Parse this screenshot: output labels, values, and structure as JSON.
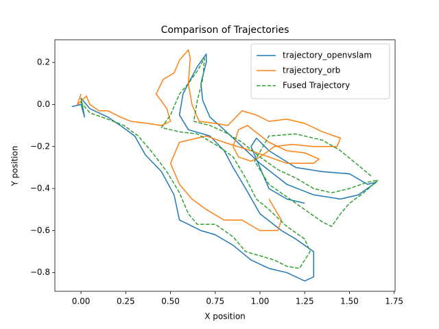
{
  "chart_data": {
    "type": "line",
    "title": "Comparison of Trajectories",
    "xlabel": "X position",
    "ylabel": "Y position",
    "xlim": [
      -0.146,
      1.755
    ],
    "ylim": [
      -0.889,
      0.308
    ],
    "xticks": [
      {
        "value": 0,
        "label": "0.00"
      },
      {
        "value": 0.25,
        "label": "0.25"
      },
      {
        "value": 0.5,
        "label": "0.50"
      },
      {
        "value": 0.75,
        "label": "0.75"
      },
      {
        "value": 1,
        "label": "1.00"
      },
      {
        "value": 1.25,
        "label": "1.25"
      },
      {
        "value": 1.5,
        "label": "1.50"
      },
      {
        "value": 1.75,
        "label": "1.75"
      }
    ],
    "yticks": [
      {
        "value": -0.8,
        "label": "−0.8"
      },
      {
        "value": -0.6,
        "label": "−0.6"
      },
      {
        "value": -0.4,
        "label": "−0.4"
      },
      {
        "value": -0.2,
        "label": "−0.2"
      },
      {
        "value": 0,
        "label": "0.0"
      },
      {
        "value": 0.2,
        "label": "0.2"
      }
    ],
    "legend": "upper right",
    "series": [
      {
        "name": "trajectory_openvslam",
        "color": "#1f77b4",
        "linestyle": "solid",
        "x": [
          -0.05,
          0.0,
          0.02,
          0.0,
          0.05,
          0.15,
          0.22,
          0.3,
          0.36,
          0.45,
          0.52,
          0.55,
          0.6,
          0.67,
          0.75,
          0.85,
          0.95,
          1.05,
          1.15,
          1.25,
          1.3,
          1.3,
          1.2,
          1.12,
          1.0,
          0.92,
          0.85,
          0.8,
          0.72,
          0.6,
          0.55,
          0.57,
          0.6,
          0.65,
          0.7,
          0.7,
          0.67,
          0.68,
          0.72,
          0.8,
          0.9,
          1.0,
          1.15,
          1.3,
          1.45,
          1.55,
          1.65,
          1.6,
          1.5,
          1.35,
          1.2,
          1.05,
          0.98,
          0.95,
          1.0,
          1.05,
          1.15,
          1.25
        ],
        "values": [
          -0.01,
          0.0,
          -0.06,
          0.03,
          -0.02,
          -0.06,
          -0.1,
          -0.15,
          -0.24,
          -0.32,
          -0.43,
          -0.55,
          -0.57,
          -0.6,
          -0.62,
          -0.67,
          -0.74,
          -0.78,
          -0.8,
          -0.84,
          -0.82,
          -0.7,
          -0.64,
          -0.6,
          -0.52,
          -0.4,
          -0.3,
          -0.22,
          -0.15,
          -0.12,
          -0.05,
          0.05,
          0.1,
          0.18,
          0.24,
          0.2,
          0.1,
          0.02,
          -0.06,
          -0.12,
          -0.2,
          -0.28,
          -0.38,
          -0.43,
          -0.45,
          -0.43,
          -0.37,
          -0.38,
          -0.33,
          -0.32,
          -0.3,
          -0.22,
          -0.16,
          -0.2,
          -0.3,
          -0.4,
          -0.45,
          -0.47
        ]
      },
      {
        "name": "trajectory_orb",
        "color": "#ff7f0e",
        "linestyle": "solid",
        "x": [
          0.0,
          -0.02,
          0.03,
          0.05,
          0.1,
          0.15,
          0.22,
          0.28,
          0.37,
          0.45,
          0.5,
          0.48,
          0.42,
          0.46,
          0.52,
          0.55,
          0.6,
          0.61,
          0.6,
          0.62,
          0.66,
          0.75,
          0.82,
          0.9,
          0.98,
          1.05,
          1.15,
          1.25,
          1.35,
          1.45,
          1.43,
          1.3,
          1.18,
          1.08,
          1.0,
          0.95,
          0.88,
          0.85,
          0.88,
          0.93,
          1.05,
          1.15,
          1.25,
          1.33,
          1.3,
          1.15,
          1.05,
          0.95,
          0.8,
          0.7,
          0.55,
          0.5,
          0.55,
          0.62,
          0.7,
          0.8,
          0.9,
          1.0,
          1.1,
          1.12,
          1.05
        ],
        "values": [
          0.05,
          0.0,
          0.04,
          0.0,
          -0.03,
          -0.03,
          -0.06,
          -0.08,
          -0.09,
          -0.1,
          -0.08,
          -0.02,
          0.05,
          0.12,
          0.15,
          0.21,
          0.26,
          0.22,
          0.1,
          0.0,
          -0.08,
          -0.09,
          -0.1,
          -0.03,
          -0.05,
          -0.08,
          -0.07,
          -0.09,
          -0.13,
          -0.16,
          -0.2,
          -0.2,
          -0.19,
          -0.2,
          -0.25,
          -0.27,
          -0.25,
          -0.2,
          -0.12,
          -0.1,
          -0.18,
          -0.22,
          -0.23,
          -0.26,
          -0.28,
          -0.28,
          -0.25,
          -0.22,
          -0.18,
          -0.15,
          -0.18,
          -0.28,
          -0.38,
          -0.45,
          -0.5,
          -0.55,
          -0.55,
          -0.6,
          -0.6,
          -0.55,
          -0.45
        ]
      },
      {
        "name": "Fused Trajectory",
        "color": "#2ca02c",
        "linestyle": "dashed",
        "x": [
          0.0,
          0.01,
          0.0,
          0.05,
          0.15,
          0.24,
          0.32,
          0.4,
          0.48,
          0.55,
          0.6,
          0.65,
          0.75,
          0.85,
          0.92,
          1.0,
          1.08,
          1.15,
          1.22,
          1.28,
          1.25,
          1.15,
          1.05,
          0.98,
          0.92,
          0.85,
          0.77,
          0.65,
          0.55,
          0.45,
          0.5,
          0.55,
          0.6,
          0.65,
          0.69,
          0.68,
          0.65,
          0.63,
          0.72,
          0.8,
          0.9,
          1.0,
          1.1,
          1.2,
          1.3,
          1.4,
          1.5,
          1.6,
          1.66,
          1.58,
          1.5,
          1.45,
          1.4,
          1.35,
          1.2,
          1.05,
          0.97,
          1.05,
          1.2,
          1.35,
          1.45,
          1.55,
          1.62
        ],
        "values": [
          0.03,
          -0.02,
          0.01,
          -0.04,
          -0.07,
          -0.1,
          -0.15,
          -0.23,
          -0.32,
          -0.42,
          -0.52,
          -0.57,
          -0.57,
          -0.63,
          -0.7,
          -0.72,
          -0.74,
          -0.77,
          -0.78,
          -0.7,
          -0.64,
          -0.58,
          -0.5,
          -0.45,
          -0.35,
          -0.25,
          -0.2,
          -0.14,
          -0.13,
          -0.11,
          -0.05,
          0.05,
          0.1,
          0.16,
          0.22,
          0.12,
          0.02,
          -0.08,
          -0.1,
          -0.13,
          -0.18,
          -0.25,
          -0.31,
          -0.35,
          -0.4,
          -0.42,
          -0.4,
          -0.37,
          -0.36,
          -0.42,
          -0.47,
          -0.52,
          -0.58,
          -0.56,
          -0.47,
          -0.38,
          -0.27,
          -0.15,
          -0.14,
          -0.17,
          -0.22,
          -0.29,
          -0.34
        ]
      }
    ]
  }
}
